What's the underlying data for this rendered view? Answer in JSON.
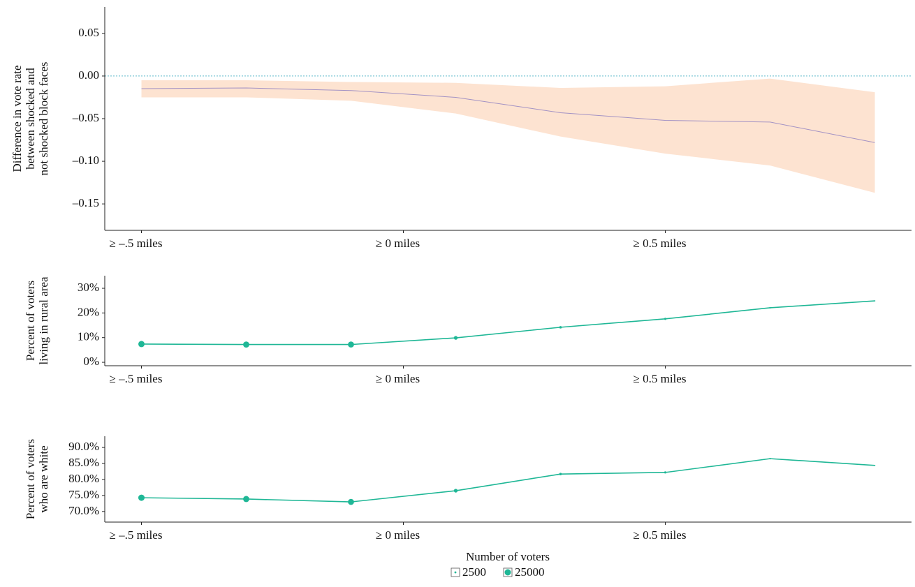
{
  "chart_data": [
    {
      "type": "line",
      "ylabel": [
        "Difference in vote rate",
        "between shocked and",
        "not shocked block faces"
      ],
      "x": [
        -0.5,
        -0.3,
        -0.1,
        0.1,
        0.3,
        0.5,
        0.7,
        0.9
      ],
      "xlim": [
        -0.57,
        0.97
      ],
      "xticks": [
        {
          "value": -0.5,
          "label": "≥ –.5 miles"
        },
        {
          "value": 0,
          "label": "≥ 0 miles"
        },
        {
          "value": 0.5,
          "label": "≥ 0.5 miles"
        }
      ],
      "ylim": [
        -0.181,
        0.081
      ],
      "yticks": [
        {
          "value": 0.05,
          "label": "0.05"
        },
        {
          "value": 0,
          "label": "0.00"
        },
        {
          "value": -0.05,
          "label": "–0.05"
        },
        {
          "value": -0.1,
          "label": "–0.10"
        },
        {
          "value": -0.15,
          "label": "–0.15"
        }
      ],
      "hline": 0,
      "hline_color": "#5bb6c9",
      "series": [
        {
          "color": "#a392c4",
          "band_color": "#fde3d1",
          "values": [
            -0.0148,
            -0.014,
            -0.017,
            -0.025,
            -0.043,
            -0.052,
            -0.054,
            -0.078
          ],
          "lower": [
            -0.025,
            -0.025,
            -0.029,
            -0.044,
            -0.071,
            -0.091,
            -0.105,
            -0.137
          ],
          "upper": [
            -0.005,
            -0.005,
            -0.007,
            -0.008,
            -0.014,
            -0.012,
            -0.003,
            -0.019
          ]
        }
      ]
    },
    {
      "type": "line",
      "ylabel": [
        "Percent of voters",
        "living in rural area"
      ],
      "x": [
        -0.5,
        -0.3,
        -0.1,
        0.1,
        0.3,
        0.5,
        0.7,
        0.9
      ],
      "xlim": [
        -0.57,
        0.97
      ],
      "xticks": [
        {
          "value": -0.5,
          "label": "≥ –.5 miles"
        },
        {
          "value": 0,
          "label": "≥ 0 miles"
        },
        {
          "value": 0.5,
          "label": "≥ 0.5 miles"
        }
      ],
      "ylim": [
        -1.4,
        35.1
      ],
      "yticks": [
        {
          "value": 30,
          "label": "30%"
        },
        {
          "value": 20,
          "label": "20%"
        },
        {
          "value": 10,
          "label": "10%"
        },
        {
          "value": 0,
          "label": "0%"
        }
      ],
      "series": [
        {
          "color": "#1fb796",
          "values": [
            7.4,
            7.2,
            7.2,
            9.9,
            14.2,
            17.6,
            22.1,
            24.9
          ],
          "sizes": [
            25000,
            24000,
            23000,
            9000,
            4000,
            3000,
            1500,
            800
          ]
        }
      ]
    },
    {
      "type": "line",
      "ylabel": [
        "Percent of voters",
        "who are white"
      ],
      "x": [
        -0.5,
        -0.3,
        -0.1,
        0.1,
        0.3,
        0.5,
        0.7,
        0.9
      ],
      "xlim": [
        -0.57,
        0.97
      ],
      "xticks": [
        {
          "value": -0.5,
          "label": "≥ –.5 miles"
        },
        {
          "value": 0,
          "label": "≥ 0 miles"
        },
        {
          "value": 0.5,
          "label": "≥ 0.5 miles"
        }
      ],
      "ylim": [
        66.7,
        93.5
      ],
      "yticks": [
        {
          "value": 90,
          "label": "90.0%"
        },
        {
          "value": 85,
          "label": "85.0%"
        },
        {
          "value": 80,
          "label": "80.0%"
        },
        {
          "value": 75,
          "label": "75.0%"
        },
        {
          "value": 70,
          "label": "70.0%"
        }
      ],
      "series": [
        {
          "color": "#1fb796",
          "values": [
            74.3,
            73.9,
            73.0,
            76.5,
            81.7,
            82.2,
            86.5,
            84.4
          ],
          "sizes": [
            25000,
            24000,
            23000,
            9000,
            4000,
            3000,
            1500,
            800
          ]
        }
      ],
      "size_legend": {
        "title": "Number of voters",
        "values": [
          2500,
          25000
        ]
      }
    }
  ]
}
